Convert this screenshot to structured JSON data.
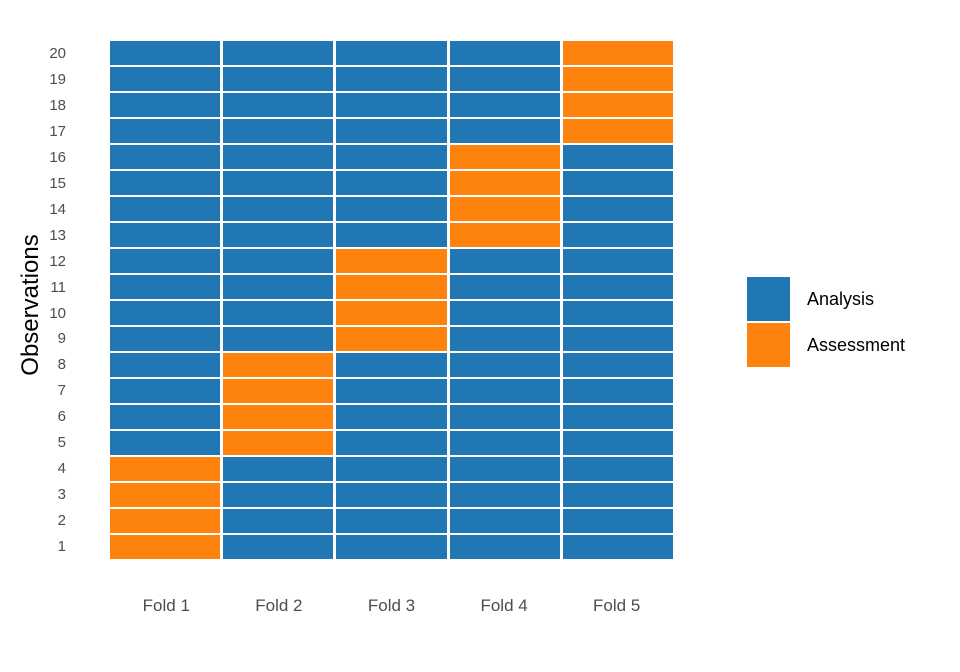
{
  "chart_data": {
    "type": "heatmap",
    "title": "",
    "xlabel": "",
    "ylabel": "Observations",
    "x_categories": [
      "Fold 1",
      "Fold 2",
      "Fold 3",
      "Fold 4",
      "Fold 5"
    ],
    "y_categories": [
      "1",
      "2",
      "3",
      "4",
      "5",
      "6",
      "7",
      "8",
      "9",
      "10",
      "11",
      "12",
      "13",
      "14",
      "15",
      "16",
      "17",
      "18",
      "19",
      "20"
    ],
    "y_order": "bottom-to-top",
    "grid": "off",
    "legend_position": "right",
    "legend": [
      {
        "label": "Analysis",
        "color": "#2077B4"
      },
      {
        "label": "Assessment",
        "color": "#FD820E"
      }
    ],
    "folds": [
      {
        "name": "Fold 1",
        "assessment_observations": [
          1,
          2,
          3,
          4
        ]
      },
      {
        "name": "Fold 2",
        "assessment_observations": [
          5,
          6,
          7,
          8
        ]
      },
      {
        "name": "Fold 3",
        "assessment_observations": [
          9,
          10,
          11,
          12
        ]
      },
      {
        "name": "Fold 4",
        "assessment_observations": [
          13,
          14,
          15,
          16
        ]
      },
      {
        "name": "Fold 5",
        "assessment_observations": [
          17,
          18,
          19,
          20
        ]
      }
    ]
  }
}
